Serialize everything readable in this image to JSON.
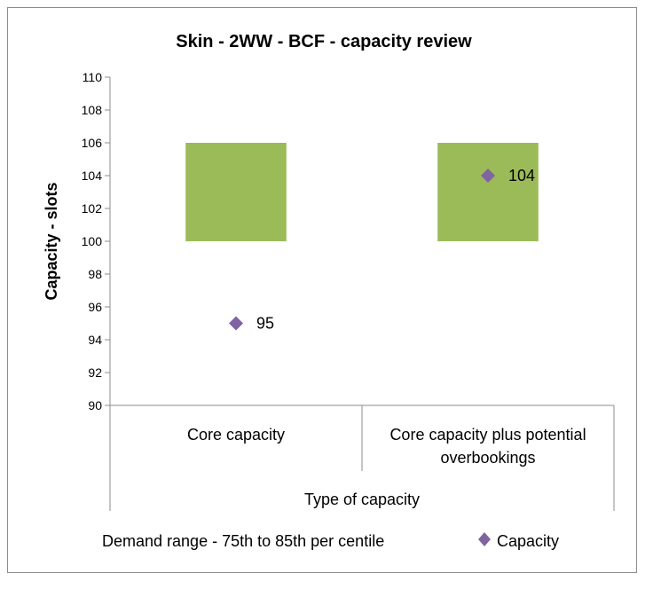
{
  "chart_data": {
    "type": "bar",
    "title": "Skin - 2WW - BCF - capacity review",
    "ylabel": "Capacity - slots",
    "xlabel": "Type of capacity",
    "ylim": [
      90,
      110
    ],
    "yticks": [
      "90",
      "92",
      "94",
      "96",
      "98",
      "100",
      "102",
      "104",
      "106",
      "108",
      "110"
    ],
    "categories": [
      [
        "Core capacity"
      ],
      [
        "Core capacity plus potential",
        "overbookings"
      ]
    ],
    "series": [
      {
        "name": "Demand range - 75th to 85th per centile",
        "type": "floating-bar",
        "values": [
          [
            100,
            106
          ],
          [
            100,
            106
          ]
        ],
        "color": "#9bbb59"
      },
      {
        "name": "Capacity",
        "type": "scatter",
        "marker": "diamond",
        "values": [
          95,
          104
        ],
        "labels": [
          "95",
          "104"
        ],
        "color": "#8064a2"
      }
    ],
    "legend": "bottom",
    "grid": false
  }
}
